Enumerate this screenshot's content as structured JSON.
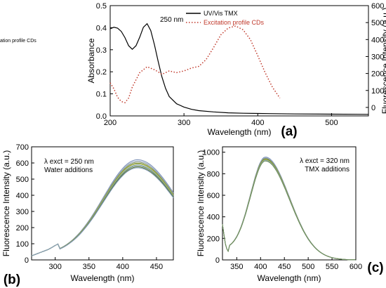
{
  "chart_data": [
    {
      "panel_label": "(a)",
      "type": "line",
      "xlabel": "Wavelength (nm)",
      "ylabel": "Absorbance",
      "ylabel_right": "Fluorescence Intensity (a.u.)",
      "xlim": [
        200,
        550
      ],
      "ylim": [
        0.0,
        0.5
      ],
      "ylim_right": [
        -50,
        600
      ],
      "xticks": [
        200,
        300,
        400,
        500
      ],
      "yticks": [
        0.0,
        0.1,
        0.2,
        0.3,
        0.4,
        0.5
      ],
      "yticks_right": [
        0,
        100,
        200,
        300,
        400,
        500,
        600
      ],
      "legend_placement": "top-right",
      "annotation": "250 nm",
      "series": [
        {
          "name": "UV/Vis TMX",
          "axis": "left",
          "color": "#000000",
          "style": "solid",
          "x": [
            200,
            205,
            210,
            215,
            220,
            225,
            230,
            235,
            240,
            245,
            250,
            255,
            260,
            265,
            270,
            275,
            280,
            290,
            300,
            310,
            320,
            340,
            360,
            380,
            400,
            450,
            500,
            550
          ],
          "y": [
            0.395,
            0.402,
            0.398,
            0.383,
            0.355,
            0.318,
            0.302,
            0.318,
            0.357,
            0.402,
            0.418,
            0.387,
            0.322,
            0.248,
            0.178,
            0.125,
            0.088,
            0.055,
            0.04,
            0.03,
            0.024,
            0.018,
            0.014,
            0.012,
            0.011,
            0.009,
            0.008,
            0.007
          ]
        },
        {
          "name": "Excitation profile CDs",
          "axis": "right",
          "color": "#c0392b",
          "style": "dotted",
          "x": [
            200,
            205,
            210,
            215,
            220,
            225,
            230,
            240,
            250,
            260,
            265,
            270,
            275,
            280,
            290,
            300,
            310,
            320,
            330,
            340,
            350,
            360,
            370,
            380,
            390,
            400,
            410,
            420,
            430
          ],
          "y": [
            145,
            110,
            60,
            35,
            28,
            55,
            120,
            205,
            240,
            222,
            210,
            195,
            205,
            215,
            205,
            215,
            232,
            242,
            282,
            352,
            428,
            468,
            480,
            458,
            400,
            305,
            205,
            118,
            55
          ]
        }
      ]
    },
    {
      "panel_label": "(b)",
      "type": "line",
      "xlabel": "Wavelength (nm)",
      "ylabel": "Fluorescence Intensity (a.u.)",
      "xlim": [
        265,
        475
      ],
      "ylim": [
        0,
        700
      ],
      "xticks": [
        300,
        350,
        400,
        450
      ],
      "yticks": [
        0,
        100,
        200,
        300,
        400,
        500,
        600,
        700
      ],
      "annotation_lines": [
        "λ exct = 250 nm",
        "Water additions"
      ],
      "series_colors": [
        "#7a8fb6",
        "#9aa9c8",
        "#8a9a64",
        "#5f7a3c",
        "#b8bf3a",
        "#7f9fbf",
        "#6c8c5a",
        "#4f6f3f",
        "#8aa0c0"
      ],
      "series": [
        {
          "peak": 620
        },
        {
          "peak": 612
        },
        {
          "peak": 605
        },
        {
          "peak": 598
        },
        {
          "peak": 595
        },
        {
          "peak": 588
        },
        {
          "peak": 582
        },
        {
          "peak": 575
        },
        {
          "peak": 570
        }
      ]
    },
    {
      "panel_label": "(c)",
      "type": "line",
      "xlabel": "Wavelength (nm)",
      "ylabel": "Fluorescence Intensity (a.u.)",
      "xlim": [
        320,
        600
      ],
      "ylim": [
        0,
        1050
      ],
      "xticks": [
        350,
        400,
        450,
        500,
        550,
        600
      ],
      "yticks": [
        0,
        200,
        400,
        600,
        800,
        1000
      ],
      "annotation_lines": [
        "λ exct = 320 nm",
        "TMX additions"
      ],
      "series_colors": [
        "#7a8fb6",
        "#9aa9c8",
        "#8a9a64",
        "#5f7a3c",
        "#b8bf3a",
        "#7f9fbf",
        "#6c8c5a"
      ],
      "series": [
        {
          "peak": 955
        },
        {
          "peak": 948
        },
        {
          "peak": 942
        },
        {
          "peak": 936
        },
        {
          "peak": 930
        },
        {
          "peak": 924
        },
        {
          "peak": 918
        }
      ]
    }
  ]
}
